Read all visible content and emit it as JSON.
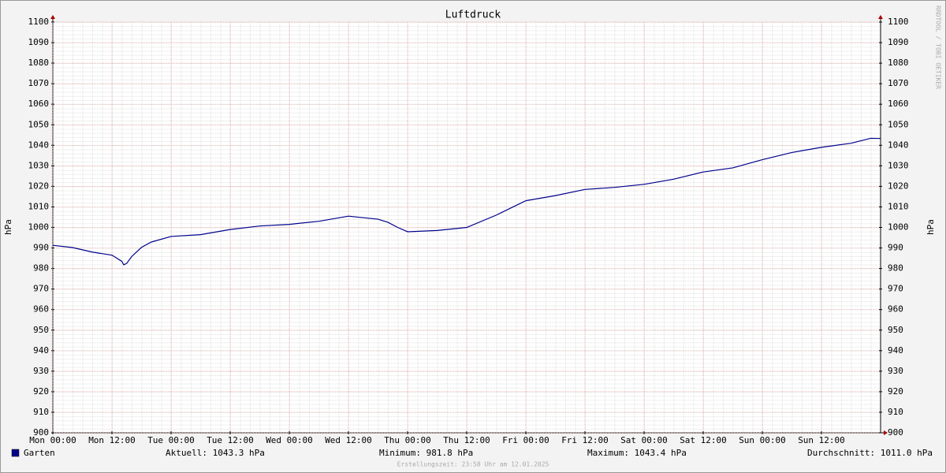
{
  "chart_data": {
    "type": "line",
    "title": "Luftdruck",
    "y_label": "hPa",
    "watermark": "RRDTOOL / TOBI OETIKER",
    "footer": "Erstellungszeit: 23:58 Uhr am 12.01.2025",
    "x": [
      0,
      4,
      8,
      12,
      14,
      14.4,
      15,
      16,
      18,
      20,
      24,
      30,
      36,
      42,
      48,
      54,
      60,
      66,
      68,
      70,
      72,
      78,
      84,
      90,
      96,
      102,
      108,
      114,
      120,
      126,
      132,
      138,
      144,
      150,
      156,
      162,
      166,
      168
    ],
    "series": [
      {
        "name": "Garten",
        "color": "#00008b",
        "values": [
          991.3,
          990.2,
          988.0,
          986.5,
          983.5,
          981.8,
          982.5,
          985.8,
          990.3,
          992.9,
          995.6,
          996.5,
          999.0,
          1000.7,
          1001.5,
          1003.0,
          1005.5,
          1004.0,
          1002.5,
          1000.0,
          997.9,
          998.5,
          1000.0,
          1006.0,
          1013.0,
          1015.5,
          1018.5,
          1019.5,
          1021.0,
          1023.5,
          1027.0,
          1029.0,
          1033.0,
          1036.5,
          1039.0,
          1041.0,
          1043.4,
          1043.3
        ]
      }
    ],
    "stats": [
      "Aktuell: 1043.3 hPa",
      "Minimum: 981.8 hPa",
      "Maximum: 1043.4 hPa",
      "Durchschnitt: 1011.0 hPa"
    ],
    "xlim": [
      0,
      168
    ],
    "xticks": [
      {
        "value": 0,
        "label": "Mon 00:00"
      },
      {
        "value": 12,
        "label": "Mon 12:00"
      },
      {
        "value": 24,
        "label": "Tue 00:00"
      },
      {
        "value": 36,
        "label": "Tue 12:00"
      },
      {
        "value": 48,
        "label": "Wed 00:00"
      },
      {
        "value": 60,
        "label": "Wed 12:00"
      },
      {
        "value": 72,
        "label": "Thu 00:00"
      },
      {
        "value": 84,
        "label": "Thu 12:00"
      },
      {
        "value": 96,
        "label": "Fri 00:00"
      },
      {
        "value": 108,
        "label": "Fri 12:00"
      },
      {
        "value": 120,
        "label": "Sat 00:00"
      },
      {
        "value": 132,
        "label": "Sat 12:00"
      },
      {
        "value": 144,
        "label": "Sun 00:00"
      },
      {
        "value": 156,
        "label": "Sun 12:00"
      }
    ],
    "ylim": [
      900,
      1100
    ],
    "yticks": [
      900,
      910,
      920,
      930,
      940,
      950,
      960,
      970,
      980,
      990,
      1000,
      1010,
      1020,
      1030,
      1040,
      1050,
      1060,
      1070,
      1080,
      1090,
      1100
    ],
    "grid": true
  }
}
